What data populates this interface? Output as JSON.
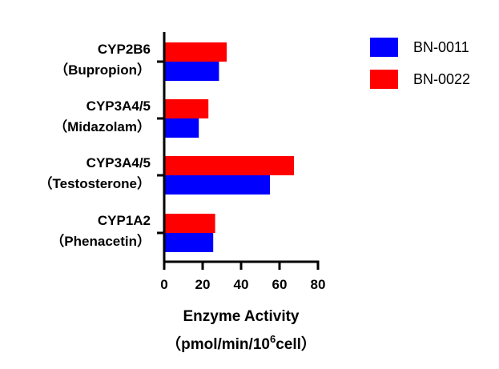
{
  "chart_data": {
    "type": "bar",
    "orientation": "horizontal",
    "categories": [
      {
        "name": "CYP2B6",
        "substrate": "（Bupropion）"
      },
      {
        "name": "CYP3A4/5",
        "substrate": "（Midazolam）"
      },
      {
        "name": "CYP3A4/5",
        "substrate": "（Testosterone）"
      },
      {
        "name": "CYP1A2",
        "substrate": "（Phenacetin）"
      }
    ],
    "series": [
      {
        "name": "BN-0022",
        "color": "#ff0000",
        "values": [
          32.5,
          23.0,
          67.5,
          26.5
        ]
      },
      {
        "name": "BN-0011",
        "color": "#0000ff",
        "values": [
          28.5,
          18.0,
          55.0,
          25.5
        ]
      }
    ],
    "xlabel_line1": "Enzyme Activity",
    "xlabel_line2_pre": "（pmol/min/10",
    "xlabel_line2_sup": "6",
    "xlabel_line2_post": "cell）",
    "xlim": [
      0,
      80
    ],
    "xticks": [
      "0",
      "20",
      "40",
      "60",
      "80"
    ],
    "legend": {
      "placement": "top-right",
      "entries": [
        {
          "name": "BN-0011",
          "color": "#0000ff"
        },
        {
          "name": "BN-0022",
          "color": "#ff0000"
        }
      ]
    },
    "grid": false
  }
}
